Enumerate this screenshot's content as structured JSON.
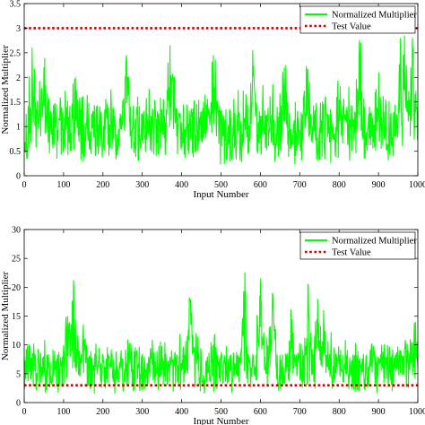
{
  "chart_data": [
    {
      "type": "line",
      "xlabel": "Input Number",
      "ylabel": "Normalized Multiplier",
      "xlim": [
        0,
        1000
      ],
      "ylim": [
        0,
        3.5
      ],
      "xticks": [
        0,
        100,
        200,
        300,
        400,
        500,
        600,
        700,
        800,
        900,
        1000
      ],
      "xtick_labels": [
        "0",
        "100",
        "200",
        "300",
        "400",
        "500",
        "600",
        "700",
        "800",
        "900",
        "1000"
      ],
      "yticks": [
        0,
        0.5,
        1,
        1.5,
        2,
        2.5,
        3,
        3.5
      ],
      "ytick_labels": [
        "0",
        "0.5",
        "1",
        "1.5",
        "2",
        "2.5",
        "3",
        "3.5"
      ],
      "grid": false,
      "legend_position": "top-right",
      "series": [
        {
          "name": "Normalized Multiplier",
          "color": "#00ff00",
          "style": "solid",
          "count": 1000,
          "baseline": 0.75,
          "spread": 0.55,
          "max": 2.88,
          "min": 0.02,
          "peaks": [
            [
              20,
              2.6
            ],
            [
              50,
              2.2
            ],
            [
              130,
              2.0
            ],
            [
              260,
              2.45
            ],
            [
              370,
              2.65
            ],
            [
              480,
              2.45
            ],
            [
              580,
              2.55
            ],
            [
              660,
              2.2
            ],
            [
              720,
              2.15
            ],
            [
              800,
              1.55
            ],
            [
              850,
              2.45
            ],
            [
              900,
              2.1
            ],
            [
              955,
              2.8
            ],
            [
              965,
              2.85
            ],
            [
              985,
              2.8
            ]
          ]
        },
        {
          "name": "Test Value",
          "color": "#cc0000",
          "style": "dotted",
          "constant": 3
        }
      ]
    },
    {
      "type": "line",
      "xlabel": "Input Number",
      "ylabel": "Normalized Multiplier",
      "xlim": [
        0,
        1000
      ],
      "ylim": [
        0,
        30
      ],
      "xticks": [
        0,
        100,
        200,
        300,
        400,
        500,
        600,
        700,
        800,
        900,
        1000
      ],
      "xtick_labels": [
        "0",
        "100",
        "200",
        "300",
        "400",
        "500",
        "600",
        "700",
        "800",
        "900",
        "1000"
      ],
      "yticks": [
        0,
        5,
        10,
        15,
        20,
        25,
        30
      ],
      "ytick_labels": [
        "0",
        "5",
        "10",
        "15",
        "20",
        "25",
        "30"
      ],
      "grid": false,
      "legend_position": "top-right",
      "series": [
        {
          "name": "Normalized Multiplier",
          "color": "#00ff00",
          "style": "solid",
          "count": 1000,
          "baseline": 5,
          "spread": 3.5,
          "max": 22.6,
          "min": 0.2,
          "peaks": [
            [
              125,
              21.2
            ],
            [
              110,
              15.0
            ],
            [
              150,
              13.5
            ],
            [
              420,
              18.0
            ],
            [
              425,
              15.5
            ],
            [
              560,
              22.6
            ],
            [
              600,
              21.5
            ],
            [
              630,
              19.0
            ],
            [
              680,
              14.5
            ],
            [
              720,
              20.3
            ],
            [
              745,
              18.0
            ],
            [
              760,
              16.0
            ],
            [
              990,
              13.8
            ]
          ]
        },
        {
          "name": "Test Value",
          "color": "#cc0000",
          "style": "dotted",
          "constant": 3
        }
      ]
    }
  ]
}
